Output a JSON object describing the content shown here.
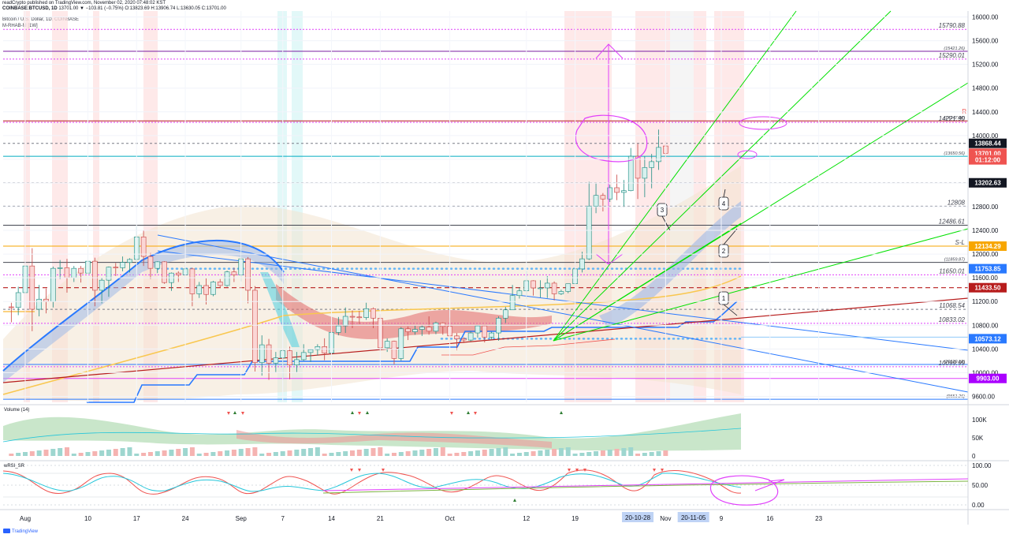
{
  "header": {
    "line1": "readCrypto published on TradingView.com, November 02, 2020 07:48:02 KST",
    "symbol": "COINBASE:BTCUSD, 1D",
    "ohlc": "13701.00 ▼ −103.81 (−0.75%) O:13823.69 H:13906.74 L:13630.05 C:13701.00",
    "line2": "Bitcoin / U.S. Dollar, 1D, COINBASE",
    "line3": "M-RHAB-M [1W]"
  },
  "indicators": {
    "volume_label": "Volume (14)",
    "rsi_label": "wRSI_SR"
  },
  "footer": {
    "brand": "TradingView"
  },
  "colors": {
    "up": "#26a69a",
    "down": "#ef5350",
    "green_line": "#00e000",
    "blue_line": "#2979ff",
    "red_line": "#b71c1c",
    "magenta": "#e040fb",
    "purple": "#7b1fa2",
    "orange": "#f7a600"
  },
  "chart_data": {
    "type": "candlestick",
    "symbol": "BTCUSD",
    "timeframe": "1D",
    "ylim": [
      9500,
      16100
    ],
    "x_ticks": [
      "Aug",
      "10",
      "17",
      "24",
      "Sep",
      "7",
      "14",
      "21",
      "Oct",
      "12",
      "19",
      "Nov",
      "9",
      "16",
      "23"
    ],
    "x_tick_dates": [
      "2020-08-01",
      "2020-08-10",
      "2020-08-17",
      "2020-08-24",
      "2020-09-01",
      "2020-09-07",
      "2020-09-14",
      "2020-09-21",
      "2020-10-01",
      "2020-10-12",
      "2020-10-19",
      "2020-11-01",
      "2020-11-09",
      "2020-11-16",
      "2020-11-23"
    ],
    "y_ticks": [
      9600,
      10000,
      10400,
      10800,
      11200,
      11600,
      12000,
      12400,
      12800,
      13200,
      13600,
      14000,
      14400,
      14800,
      15200,
      15600,
      16000
    ],
    "y_tick_labels": [
      "9600.00",
      "10000.00",
      "10400.00",
      "10800.00",
      "11200.00",
      "11600.00",
      "12000.00",
      "12400.00",
      "12800.00",
      "13200.00",
      "13600.00",
      "14000.00",
      "14400.00",
      "14800.00",
      "15200.00",
      "15600.00",
      "16000.00"
    ],
    "candles": [
      {
        "d": "2020-07-30",
        "o": 11110,
        "h": 11180,
        "l": 10850,
        "c": 11100
      },
      {
        "d": "2020-07-31",
        "o": 11100,
        "h": 11450,
        "l": 10970,
        "c": 11350
      },
      {
        "d": "2020-08-01",
        "o": 11350,
        "h": 11860,
        "l": 11220,
        "c": 11800
      },
      {
        "d": "2020-08-02",
        "o": 11800,
        "h": 12100,
        "l": 10700,
        "c": 11070
      },
      {
        "d": "2020-08-03",
        "o": 11070,
        "h": 11480,
        "l": 10950,
        "c": 11240
      },
      {
        "d": "2020-08-04",
        "o": 11240,
        "h": 11420,
        "l": 11000,
        "c": 11200
      },
      {
        "d": "2020-08-05",
        "o": 11200,
        "h": 11790,
        "l": 11100,
        "c": 11760
      },
      {
        "d": "2020-08-06",
        "o": 11760,
        "h": 11900,
        "l": 11580,
        "c": 11770
      },
      {
        "d": "2020-08-07",
        "o": 11770,
        "h": 11920,
        "l": 11350,
        "c": 11600
      },
      {
        "d": "2020-08-08",
        "o": 11600,
        "h": 11800,
        "l": 11530,
        "c": 11760
      },
      {
        "d": "2020-08-09",
        "o": 11760,
        "h": 11800,
        "l": 11520,
        "c": 11680
      },
      {
        "d": "2020-08-10",
        "o": 11680,
        "h": 12080,
        "l": 11470,
        "c": 11880
      },
      {
        "d": "2020-08-11",
        "o": 11880,
        "h": 11940,
        "l": 11120,
        "c": 11390
      },
      {
        "d": "2020-08-12",
        "o": 11390,
        "h": 11600,
        "l": 11170,
        "c": 11560
      },
      {
        "d": "2020-08-13",
        "o": 11560,
        "h": 11790,
        "l": 11280,
        "c": 11780
      },
      {
        "d": "2020-08-14",
        "o": 11780,
        "h": 11850,
        "l": 11630,
        "c": 11770
      },
      {
        "d": "2020-08-15",
        "o": 11770,
        "h": 11960,
        "l": 11710,
        "c": 11860
      },
      {
        "d": "2020-08-16",
        "o": 11860,
        "h": 11930,
        "l": 11690,
        "c": 11910
      },
      {
        "d": "2020-08-17",
        "o": 11910,
        "h": 12470,
        "l": 11840,
        "c": 12290
      },
      {
        "d": "2020-08-18",
        "o": 12290,
        "h": 12400,
        "l": 11800,
        "c": 11960
      },
      {
        "d": "2020-08-19",
        "o": 11960,
        "h": 12020,
        "l": 11580,
        "c": 11760
      },
      {
        "d": "2020-08-20",
        "o": 11760,
        "h": 11880,
        "l": 11680,
        "c": 11870
      },
      {
        "d": "2020-08-21",
        "o": 11870,
        "h": 11880,
        "l": 11500,
        "c": 11520
      },
      {
        "d": "2020-08-22",
        "o": 11520,
        "h": 11690,
        "l": 11380,
        "c": 11680
      },
      {
        "d": "2020-08-23",
        "o": 11680,
        "h": 11710,
        "l": 11530,
        "c": 11650
      },
      {
        "d": "2020-08-24",
        "o": 11650,
        "h": 11820,
        "l": 11590,
        "c": 11750
      },
      {
        "d": "2020-08-25",
        "o": 11750,
        "h": 11770,
        "l": 11120,
        "c": 11330
      },
      {
        "d": "2020-08-26",
        "o": 11330,
        "h": 11530,
        "l": 11260,
        "c": 11470
      },
      {
        "d": "2020-08-27",
        "o": 11470,
        "h": 11590,
        "l": 11150,
        "c": 11320
      },
      {
        "d": "2020-08-28",
        "o": 11320,
        "h": 11550,
        "l": 11290,
        "c": 11530
      },
      {
        "d": "2020-08-29",
        "o": 11530,
        "h": 11580,
        "l": 11430,
        "c": 11470
      },
      {
        "d": "2020-08-30",
        "o": 11470,
        "h": 11720,
        "l": 11450,
        "c": 11700
      },
      {
        "d": "2020-08-31",
        "o": 11700,
        "h": 11770,
        "l": 11530,
        "c": 11650
      },
      {
        "d": "2020-09-01",
        "o": 11650,
        "h": 12090,
        "l": 11540,
        "c": 11920
      },
      {
        "d": "2020-09-02",
        "o": 11920,
        "h": 11950,
        "l": 11170,
        "c": 11390
      },
      {
        "d": "2020-09-03",
        "o": 11390,
        "h": 11460,
        "l": 10020,
        "c": 10170
      },
      {
        "d": "2020-09-04",
        "o": 10170,
        "h": 10630,
        "l": 9950,
        "c": 10470
      },
      {
        "d": "2020-09-05",
        "o": 10470,
        "h": 10570,
        "l": 9880,
        "c": 10160
      },
      {
        "d": "2020-09-06",
        "o": 10160,
        "h": 10350,
        "l": 10010,
        "c": 10250
      },
      {
        "d": "2020-09-07",
        "o": 10250,
        "h": 10400,
        "l": 9880,
        "c": 10370
      },
      {
        "d": "2020-09-08",
        "o": 10370,
        "h": 10440,
        "l": 9890,
        "c": 10130
      },
      {
        "d": "2020-09-09",
        "o": 10130,
        "h": 10350,
        "l": 10010,
        "c": 10220
      },
      {
        "d": "2020-09-10",
        "o": 10220,
        "h": 10480,
        "l": 10200,
        "c": 10340
      },
      {
        "d": "2020-09-11",
        "o": 10340,
        "h": 10400,
        "l": 10180,
        "c": 10390
      },
      {
        "d": "2020-09-12",
        "o": 10390,
        "h": 10480,
        "l": 10290,
        "c": 10440
      },
      {
        "d": "2020-09-13",
        "o": 10440,
        "h": 10580,
        "l": 10210,
        "c": 10330
      },
      {
        "d": "2020-09-14",
        "o": 10330,
        "h": 10800,
        "l": 10270,
        "c": 10680
      },
      {
        "d": "2020-09-15",
        "o": 10680,
        "h": 10940,
        "l": 10630,
        "c": 10790
      },
      {
        "d": "2020-09-16",
        "o": 10790,
        "h": 11100,
        "l": 10670,
        "c": 10950
      },
      {
        "d": "2020-09-17",
        "o": 10950,
        "h": 11050,
        "l": 10750,
        "c": 10940
      },
      {
        "d": "2020-09-18",
        "o": 10940,
        "h": 11040,
        "l": 10820,
        "c": 10930
      },
      {
        "d": "2020-09-19",
        "o": 10930,
        "h": 11180,
        "l": 10890,
        "c": 11080
      },
      {
        "d": "2020-09-20",
        "o": 11080,
        "h": 11100,
        "l": 10750,
        "c": 10920
      },
      {
        "d": "2020-09-21",
        "o": 10920,
        "h": 10990,
        "l": 10360,
        "c": 10420
      },
      {
        "d": "2020-09-22",
        "o": 10420,
        "h": 10580,
        "l": 10350,
        "c": 10530
      },
      {
        "d": "2020-09-23",
        "o": 10530,
        "h": 10540,
        "l": 10140,
        "c": 10240
      },
      {
        "d": "2020-09-24",
        "o": 10240,
        "h": 10770,
        "l": 10200,
        "c": 10740
      },
      {
        "d": "2020-09-25",
        "o": 10740,
        "h": 10780,
        "l": 10550,
        "c": 10690
      },
      {
        "d": "2020-09-26",
        "o": 10690,
        "h": 10790,
        "l": 10640,
        "c": 10730
      },
      {
        "d": "2020-09-27",
        "o": 10730,
        "h": 10800,
        "l": 10620,
        "c": 10770
      },
      {
        "d": "2020-09-28",
        "o": 10770,
        "h": 10950,
        "l": 10640,
        "c": 10700
      },
      {
        "d": "2020-09-29",
        "o": 10700,
        "h": 10860,
        "l": 10650,
        "c": 10840
      },
      {
        "d": "2020-09-30",
        "o": 10840,
        "h": 10850,
        "l": 10640,
        "c": 10780
      },
      {
        "d": "2020-10-01",
        "o": 10780,
        "h": 10930,
        "l": 10480,
        "c": 10620
      },
      {
        "d": "2020-10-02",
        "o": 10620,
        "h": 10670,
        "l": 10380,
        "c": 10570
      },
      {
        "d": "2020-10-03",
        "o": 10570,
        "h": 10600,
        "l": 10500,
        "c": 10550
      },
      {
        "d": "2020-10-04",
        "o": 10550,
        "h": 10700,
        "l": 10530,
        "c": 10670
      },
      {
        "d": "2020-10-05",
        "o": 10670,
        "h": 10800,
        "l": 10590,
        "c": 10790
      },
      {
        "d": "2020-10-06",
        "o": 10790,
        "h": 10800,
        "l": 10510,
        "c": 10600
      },
      {
        "d": "2020-10-07",
        "o": 10600,
        "h": 10690,
        "l": 10560,
        "c": 10670
      },
      {
        "d": "2020-10-08",
        "o": 10670,
        "h": 10950,
        "l": 10540,
        "c": 10920
      },
      {
        "d": "2020-10-09",
        "o": 10920,
        "h": 11110,
        "l": 10840,
        "c": 11060
      },
      {
        "d": "2020-10-10",
        "o": 11060,
        "h": 11480,
        "l": 11060,
        "c": 11300
      },
      {
        "d": "2020-10-11",
        "o": 11300,
        "h": 11440,
        "l": 11250,
        "c": 11380
      },
      {
        "d": "2020-10-12",
        "o": 11380,
        "h": 11720,
        "l": 11240,
        "c": 11550
      },
      {
        "d": "2020-10-13",
        "o": 11550,
        "h": 11560,
        "l": 11300,
        "c": 11430
      },
      {
        "d": "2020-10-14",
        "o": 11430,
        "h": 11560,
        "l": 11270,
        "c": 11430
      },
      {
        "d": "2020-10-15",
        "o": 11430,
        "h": 11630,
        "l": 11260,
        "c": 11510
      },
      {
        "d": "2020-10-16",
        "o": 11510,
        "h": 11540,
        "l": 11220,
        "c": 11330
      },
      {
        "d": "2020-10-17",
        "o": 11330,
        "h": 11400,
        "l": 11310,
        "c": 11370
      },
      {
        "d": "2020-10-18",
        "o": 11370,
        "h": 11500,
        "l": 11340,
        "c": 11500
      },
      {
        "d": "2020-10-19",
        "o": 11500,
        "h": 11820,
        "l": 11440,
        "c": 11750
      },
      {
        "d": "2020-10-20",
        "o": 11750,
        "h": 12040,
        "l": 11690,
        "c": 11920
      },
      {
        "d": "2020-10-21",
        "o": 11920,
        "h": 13220,
        "l": 11900,
        "c": 12810
      },
      {
        "d": "2020-10-22",
        "o": 12810,
        "h": 13190,
        "l": 12690,
        "c": 12990
      },
      {
        "d": "2020-10-23",
        "o": 12990,
        "h": 13030,
        "l": 12720,
        "c": 12930
      },
      {
        "d": "2020-10-24",
        "o": 12930,
        "h": 13170,
        "l": 12880,
        "c": 13120
      },
      {
        "d": "2020-10-25",
        "o": 13120,
        "h": 13340,
        "l": 12910,
        "c": 13040
      },
      {
        "d": "2020-10-26",
        "o": 13040,
        "h": 13250,
        "l": 12790,
        "c": 13070
      },
      {
        "d": "2020-10-27",
        "o": 13070,
        "h": 13790,
        "l": 13060,
        "c": 13650
      },
      {
        "d": "2020-10-28",
        "o": 13650,
        "h": 13860,
        "l": 12930,
        "c": 13280
      },
      {
        "d": "2020-10-29",
        "o": 13280,
        "h": 13650,
        "l": 12960,
        "c": 13460
      },
      {
        "d": "2020-10-30",
        "o": 13460,
        "h": 13690,
        "l": 13110,
        "c": 13560
      },
      {
        "d": "2020-10-31",
        "o": 13560,
        "h": 14100,
        "l": 13420,
        "c": 13800
      },
      {
        "d": "2020-11-01",
        "o": 13823.69,
        "h": 13906.74,
        "l": 13630.05,
        "c": 13701
      }
    ],
    "levels": [
      {
        "label": "15790.88",
        "value": 15790.88
      },
      {
        "label": "(15421.26)",
        "value": 15421.26
      },
      {
        "label": "15290.01",
        "value": 15290.01
      },
      {
        "label": "(14247.40)",
        "value": 14247.4
      },
      {
        "label": "14221.90",
        "value": 14221.9
      },
      {
        "label": "(13650.56)",
        "value": 13650.56
      },
      {
        "label": "12808",
        "value": 12808
      },
      {
        "label": "12486.61",
        "value": 12486.61
      },
      {
        "label": "S-L",
        "value": 12134.29
      },
      {
        "label": "(11859.87)",
        "value": 11859.87
      },
      {
        "label": "11650.01",
        "value": 11650.01
      },
      {
        "label": "11068.54",
        "value": 11068.54
      },
      {
        "label": "10833.02",
        "value": 10833.02
      },
      {
        "label": "(10139.18)",
        "value": 10139.18
      },
      {
        "label": "10099.99",
        "value": 10099.99
      },
      {
        "label": "(9551.26)",
        "value": 9551.26
      }
    ],
    "price_tags": [
      {
        "label": "13868.44",
        "value": 13868.44,
        "color": "#131722"
      },
      {
        "label": "13701.00",
        "value": 13701.0,
        "color": "#ef5350"
      },
      {
        "label": "01:12:00",
        "value": 13590,
        "color": "#ef5350"
      },
      {
        "label": "13202.63",
        "value": 13202.63,
        "color": "#131722"
      },
      {
        "label": "12134.29",
        "value": 12134.29,
        "color": "#f7a600"
      },
      {
        "label": "11753.85",
        "value": 11753.85,
        "color": "#2979ff"
      },
      {
        "label": "11433.50",
        "value": 11433.5,
        "color": "#b71c1c"
      },
      {
        "label": "10573.12",
        "value": 10573.12,
        "color": "#2979ff"
      },
      {
        "label": "9903.00",
        "value": 9903.0,
        "color": "#aa00ff"
      }
    ],
    "annotations": [
      "1",
      "2",
      "3",
      "4"
    ],
    "volume": {
      "title": "Volume (14)",
      "y_ticks": [
        "100K",
        "50K",
        "0"
      ]
    },
    "rsi": {
      "title": "wRSI_SR",
      "y_ticks": [
        "100.00",
        "50.00",
        "0.00"
      ]
    },
    "date_badges": [
      "20-10-28",
      "20-11-05"
    ]
  }
}
